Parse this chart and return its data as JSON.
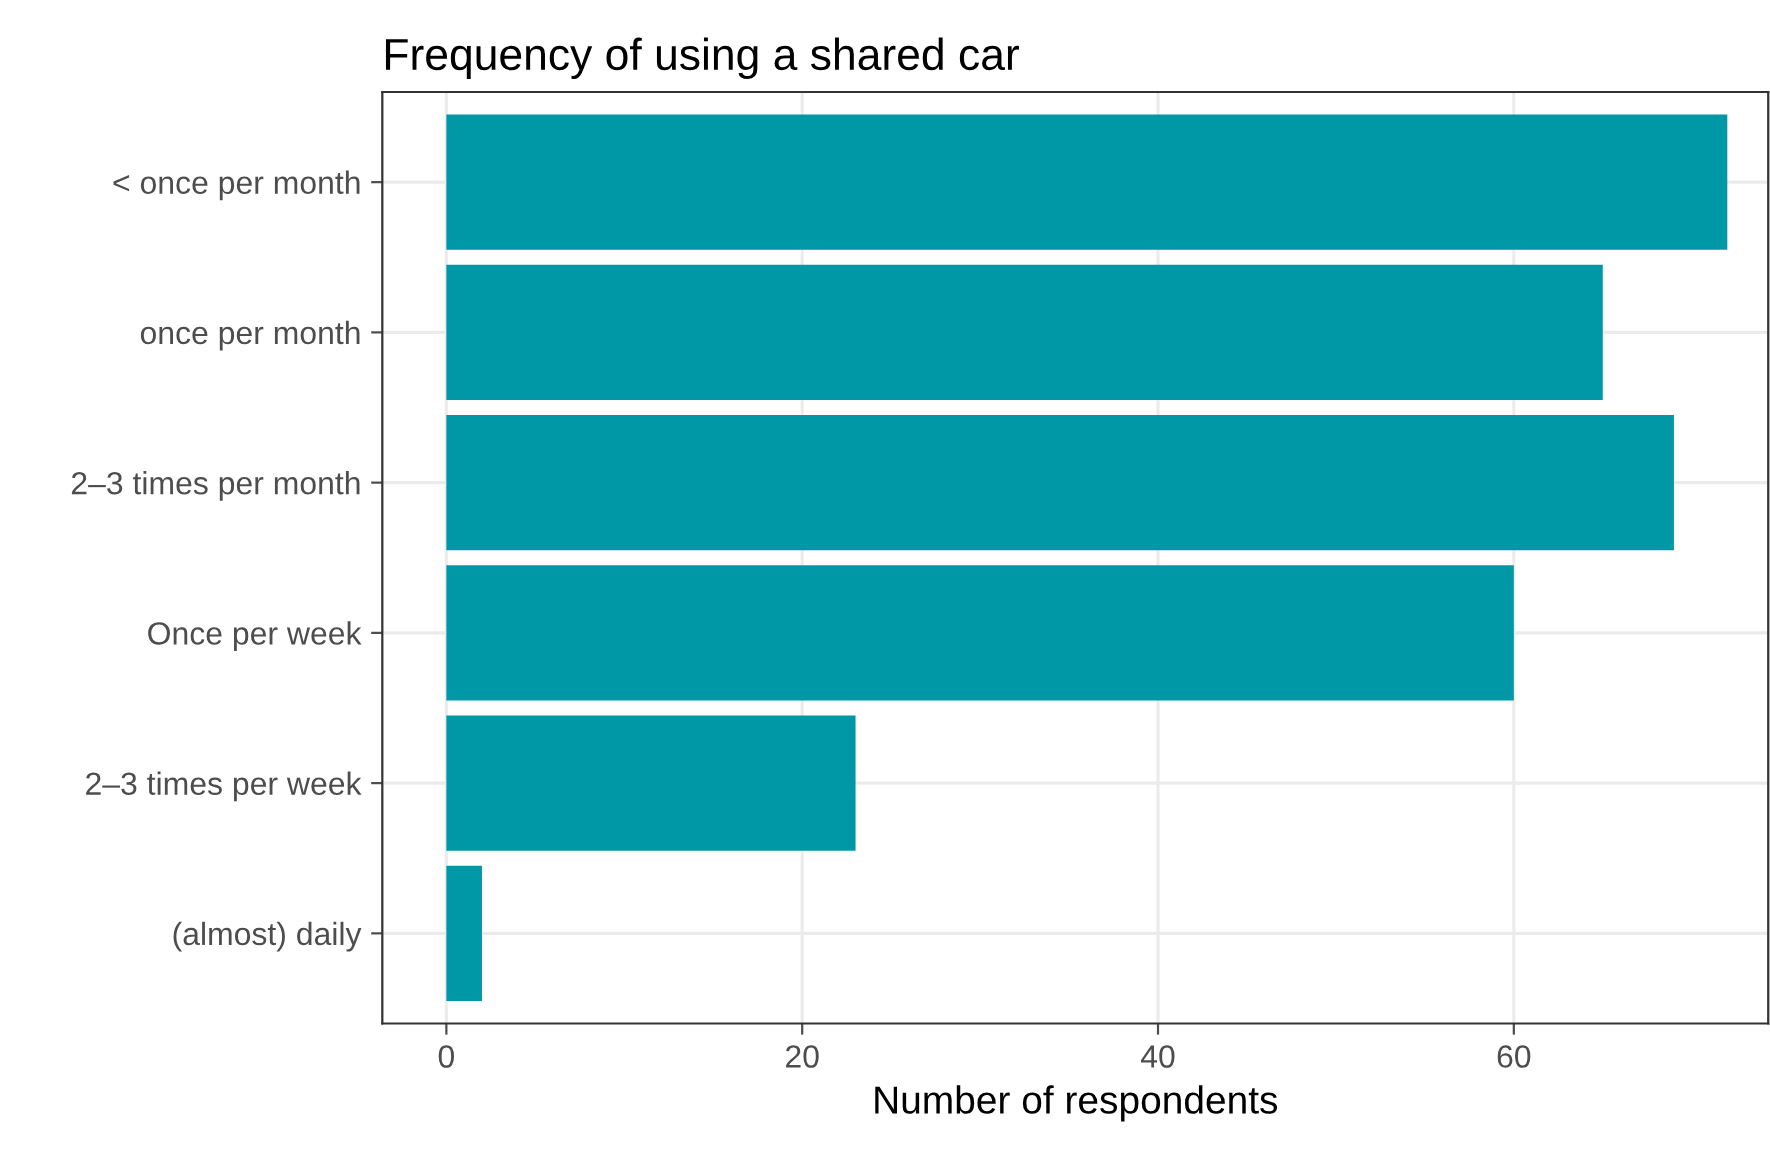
{
  "chart_data": {
    "type": "bar",
    "orientation": "horizontal",
    "title": "Frequency of using a shared car",
    "xlabel": "Number of respondents",
    "categories": [
      "< once per month",
      "once per month",
      "2–3 times per month",
      "Once per week",
      "2–3 times per week",
      "(almost) daily"
    ],
    "values": [
      72,
      65,
      69,
      60,
      23,
      2
    ],
    "color": "#0097a7",
    "xlim": [
      -3.6,
      74.3
    ],
    "xticks": [
      0,
      20,
      40,
      60
    ],
    "grid": true
  }
}
